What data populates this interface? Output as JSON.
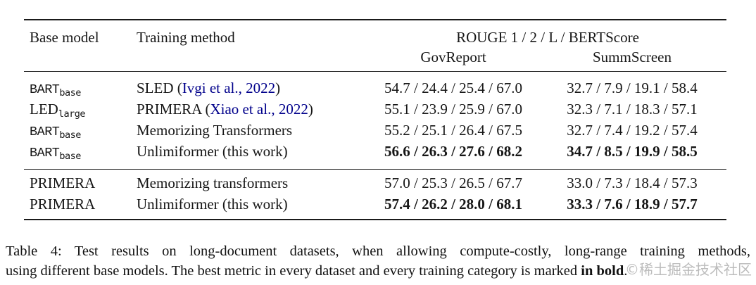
{
  "table": {
    "header": {
      "col_base_model": "Base model",
      "col_training_method": "Training method",
      "metrics_label": "ROUGE 1 / 2 / L / BERTScore",
      "dataset_left": "GovReport",
      "dataset_right": "SummScreen"
    },
    "rows": [
      {
        "base": "BART",
        "base_sub": "base",
        "method_prefix": "SLED (",
        "method_cite": "Ivgi et al., 2022",
        "method_suffix": ")",
        "govreport": "54.7 / 24.4 / 25.4 / 67.0",
        "summscreen": "32.7 / 7.9 / 19.1 / 58.4"
      },
      {
        "base": "LED",
        "base_sub": "large",
        "method_prefix": "PRIMERA (",
        "method_cite": "Xiao et al., 2022",
        "method_suffix": ")",
        "govreport": "55.1 / 23.9 / 25.9 / 67.0",
        "summscreen": "32.3 / 7.1 / 18.3 / 57.1"
      },
      {
        "base": "BART",
        "base_sub": "base",
        "method_prefix": "Memorizing Transformers",
        "method_cite": "",
        "method_suffix": "",
        "govreport": "55.2 / 25.1 / 26.4 / 67.5",
        "summscreen": "32.7 / 7.4 / 19.2 / 57.4"
      },
      {
        "base": "BART",
        "base_sub": "base",
        "method_prefix": "Unlimiformer (this work)",
        "method_cite": "",
        "method_suffix": "",
        "govreport": "56.6 / 26.3 / 27.6 / 68.2",
        "summscreen": "34.7 / 8.5 / 19.9 / 58.5"
      },
      {
        "base": "PRIMERA",
        "base_sub": "",
        "method_prefix": "Memorizing transformers",
        "method_cite": "",
        "method_suffix": "",
        "govreport": "57.0 / 25.3 / 26.5 / 67.7",
        "summscreen": "33.0 / 7.3 / 18.4 / 57.3"
      },
      {
        "base": "PRIMERA",
        "base_sub": "",
        "method_prefix": "Unlimiformer (this work)",
        "method_cite": "",
        "method_suffix": "",
        "govreport": "57.4 / 26.2 / 28.0 / 68.1",
        "summscreen": "33.3 / 7.6 / 18.9 / 57.7"
      }
    ]
  },
  "caption": {
    "line1": "Table 4: Test results on long-document datasets, when allowing compute-costly, long-range training methods,",
    "line2_pre": "using different base models. The best metric in every dataset and every training category is marked ",
    "line2_bold": "in bold",
    "line2_post": "."
  },
  "watermark": "©稀土掘金技术社区",
  "colors": {
    "citation_blue": "#00008B",
    "watermark_gray": "#bcbcbc",
    "rule_black": "#1a1a1a"
  }
}
